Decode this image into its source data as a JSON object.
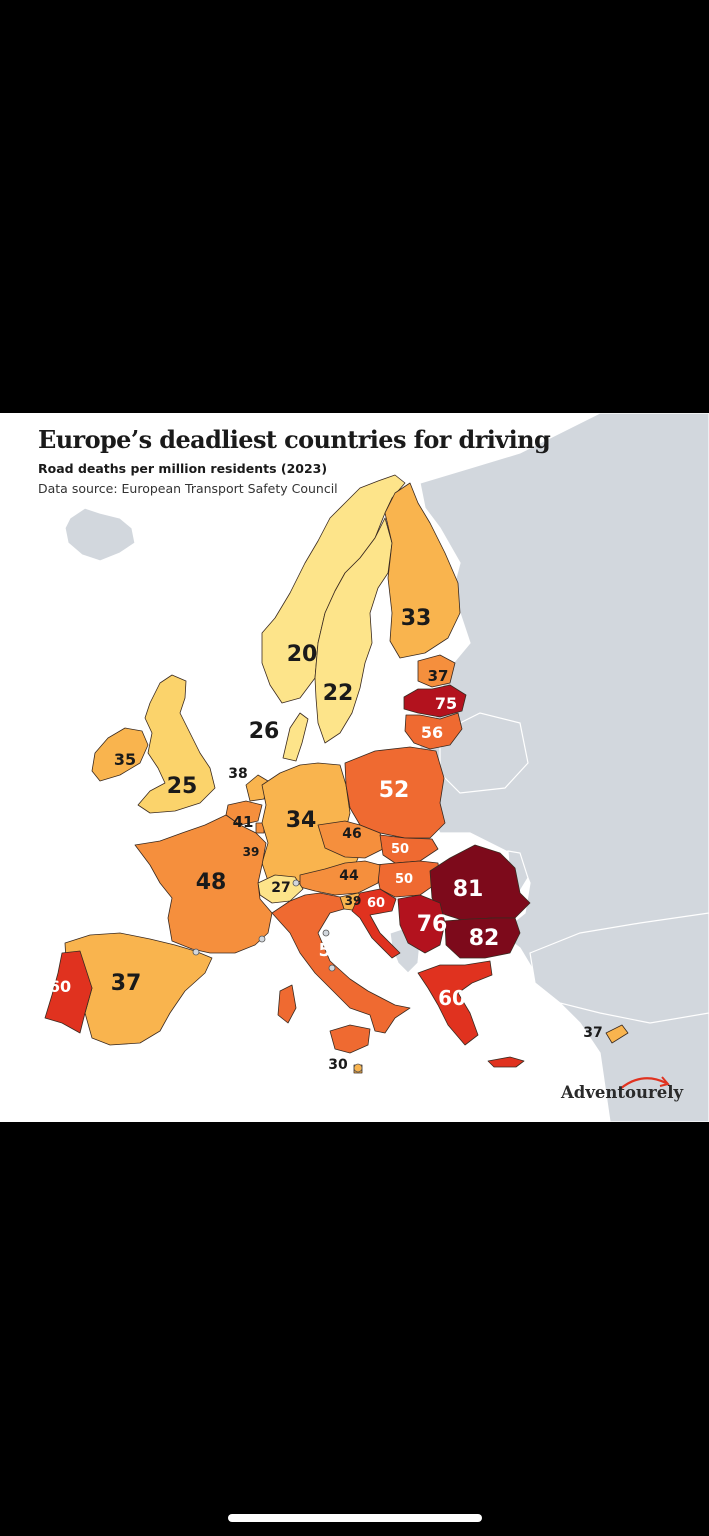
{
  "map": {
    "title": "Europe’s deadliest countries for driving",
    "subtitle": "Road deaths per million residents (2023)",
    "source": "Data source: European Transport Safety Council",
    "brand": "Adventourely",
    "colors": {
      "background_land": "#d2d7dd",
      "water": "#ffffff",
      "scale": [
        "#fde48a",
        "#fbd36b",
        "#f9b44e",
        "#f58f3d",
        "#ef6a31",
        "#e0321f",
        "#b3121e",
        "#7d0a1b"
      ],
      "brand_accent": "#e0321f"
    },
    "regions": [
      {
        "name": "Norway",
        "value": 20
      },
      {
        "name": "Sweden",
        "value": 22
      },
      {
        "name": "Finland",
        "value": 33
      },
      {
        "name": "Estonia",
        "value": 37
      },
      {
        "name": "Latvia",
        "value": 75
      },
      {
        "name": "Lithuania",
        "value": 56
      },
      {
        "name": "Denmark",
        "value": 26
      },
      {
        "name": "Ireland",
        "value": 35
      },
      {
        "name": "United Kingdom",
        "value": 25
      },
      {
        "name": "Netherlands",
        "value": 38
      },
      {
        "name": "Belgium",
        "value": 41
      },
      {
        "name": "Luxembourg",
        "value": 39
      },
      {
        "name": "Germany",
        "value": 34
      },
      {
        "name": "Poland",
        "value": 52
      },
      {
        "name": "Czechia",
        "value": 46
      },
      {
        "name": "Slovakia",
        "value": 50
      },
      {
        "name": "Hungary",
        "value": 50
      },
      {
        "name": "Austria",
        "value": 44
      },
      {
        "name": "Switzerland",
        "value": 27
      },
      {
        "name": "Slovenia",
        "value": 39
      },
      {
        "name": "Croatia",
        "value": 60
      },
      {
        "name": "France",
        "value": 48
      },
      {
        "name": "Spain",
        "value": 37
      },
      {
        "name": "Portugal",
        "value": 60
      },
      {
        "name": "Italy",
        "value": 52
      },
      {
        "name": "Malta",
        "value": 30
      },
      {
        "name": "Romania",
        "value": 81
      },
      {
        "name": "Serbia",
        "value": 76
      },
      {
        "name": "Bulgaria",
        "value": 82
      },
      {
        "name": "Greece",
        "value": 60
      },
      {
        "name": "Cyprus",
        "value": 37
      }
    ]
  }
}
